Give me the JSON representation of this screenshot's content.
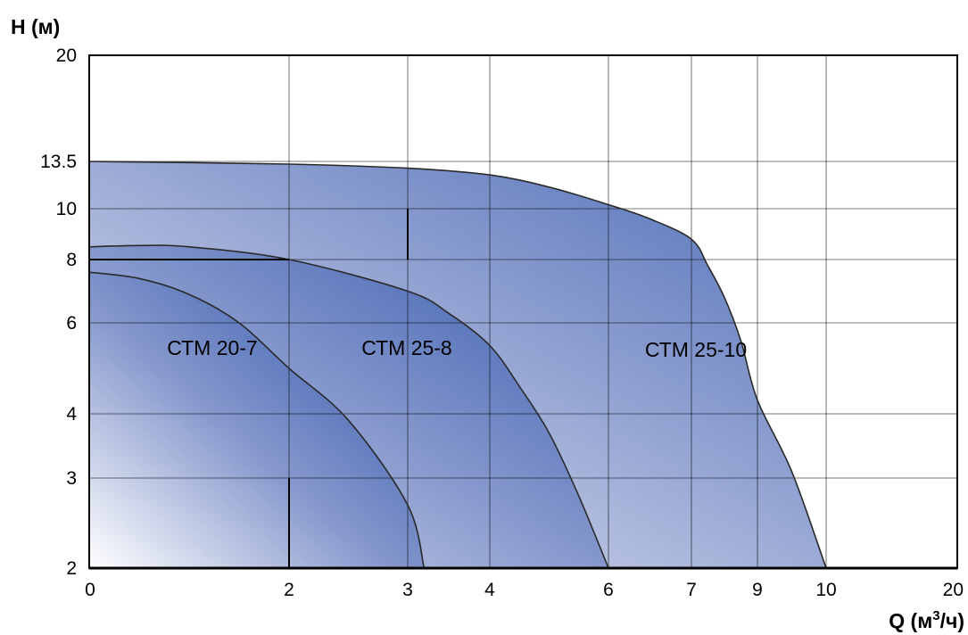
{
  "chart_data": {
    "type": "area",
    "title": "",
    "ylabel": "H (м)",
    "xlabel_main": "Q (м",
    "xlabel_sup": "3",
    "xlabel_tail": "/ч)",
    "x_ticks": [
      "0",
      "2",
      "3",
      "4",
      "6",
      "7",
      "9",
      "10",
      "20"
    ],
    "y_ticks": [
      "20",
      "13.5",
      "10",
      "8",
      "6",
      "4",
      "3",
      "2"
    ],
    "grid": true,
    "series": [
      {
        "name": "СТМ 25-10",
        "color": "#4e6fba",
        "x": [
          0,
          2,
          3,
          4,
          5,
          6,
          6.5,
          7,
          7.5,
          8,
          8.5,
          9,
          9.5,
          10
        ],
        "y": [
          13.5,
          13.3,
          13,
          12.5,
          11.6,
          10.3,
          9.6,
          8.8,
          7.8,
          6.8,
          5.6,
          4.3,
          3.1,
          2
        ]
      },
      {
        "name": "СТМ 25-8",
        "color": "#4a6cb8",
        "x": [
          0,
          0.5,
          1,
          2,
          3,
          3.5,
          4,
          4.5,
          5,
          5.5,
          6
        ],
        "y": [
          8.5,
          8.55,
          8.5,
          8,
          7,
          6.3,
          5.5,
          4.6,
          3.7,
          2.8,
          2
        ]
      },
      {
        "name": "СТМ 20-7",
        "color": "#4a6cb8",
        "x": [
          0,
          0.5,
          1,
          1.5,
          2,
          2.5,
          3,
          3.2
        ],
        "y": [
          7.6,
          7.4,
          6.9,
          6,
          5,
          3.9,
          2.7,
          2
        ]
      }
    ]
  }
}
